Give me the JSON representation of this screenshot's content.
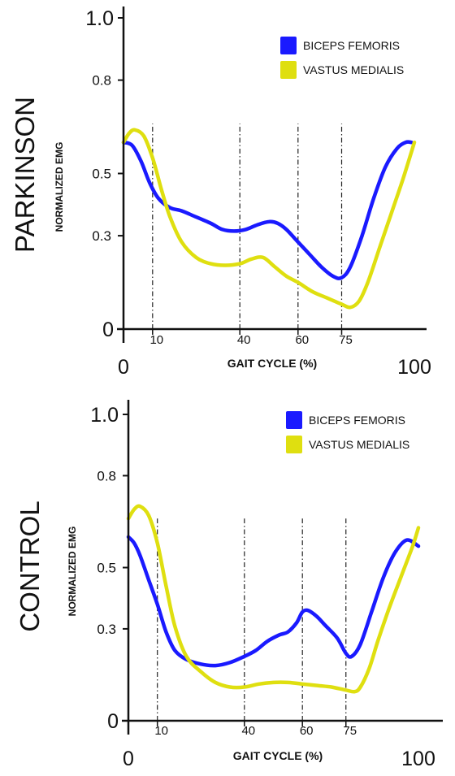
{
  "chart_data": [
    {
      "type": "line",
      "title": "PARKINSON",
      "xlabel": "GAIT CYCLE (%)",
      "ylabel": "NORMALIZED EMG",
      "xlim": [
        0,
        100
      ],
      "ylim": [
        0,
        1.0
      ],
      "y_ticks": [
        "0",
        "0.3",
        "0.5",
        "0.8",
        "1.0"
      ],
      "x_ticks_major": [
        "0",
        "100"
      ],
      "x_ticks_minor": [
        "10",
        "40",
        "60",
        "75"
      ],
      "phase_lines": [
        10,
        40,
        60,
        75
      ],
      "legend_position": "top-right",
      "series": [
        {
          "name": "BICEPS FEMORIS",
          "color": "#1a1aff",
          "x": [
            0,
            3,
            6,
            9,
            12,
            16,
            20,
            25,
            30,
            34,
            38,
            42,
            46,
            50,
            53,
            56,
            60,
            64,
            68,
            72,
            75,
            78,
            82,
            86,
            90,
            94,
            97,
            99
          ],
          "y": [
            0.6,
            0.59,
            0.54,
            0.47,
            0.42,
            0.39,
            0.38,
            0.36,
            0.34,
            0.32,
            0.315,
            0.32,
            0.335,
            0.345,
            0.34,
            0.32,
            0.28,
            0.24,
            0.2,
            0.17,
            0.165,
            0.2,
            0.3,
            0.42,
            0.52,
            0.58,
            0.6,
            0.6
          ]
        },
        {
          "name": "VASTUS MEDIALIS",
          "color": "#dfdf10",
          "x": [
            0,
            2,
            4,
            7,
            10,
            13,
            16,
            20,
            25,
            30,
            35,
            40,
            44,
            48,
            52,
            56,
            60,
            65,
            70,
            75,
            78,
            81,
            84,
            88,
            92,
            96,
            100
          ],
          "y": [
            0.6,
            0.63,
            0.64,
            0.62,
            0.55,
            0.45,
            0.36,
            0.28,
            0.23,
            0.21,
            0.205,
            0.21,
            0.225,
            0.23,
            0.2,
            0.17,
            0.15,
            0.12,
            0.1,
            0.08,
            0.07,
            0.09,
            0.15,
            0.26,
            0.37,
            0.48,
            0.6
          ]
        }
      ]
    },
    {
      "type": "line",
      "title": "CONTROL",
      "xlabel": "GAIT CYCLE (%)",
      "ylabel": "NORMALIZED EMG",
      "xlim": [
        0,
        100
      ],
      "ylim": [
        0,
        1.0
      ],
      "y_ticks": [
        "0",
        "0.3",
        "0.5",
        "0.8",
        "1.0"
      ],
      "x_ticks_major": [
        "0",
        "100"
      ],
      "x_ticks_minor": [
        "10",
        "40",
        "60",
        "75"
      ],
      "phase_lines": [
        10,
        40,
        60,
        75
      ],
      "legend_position": "top-right",
      "series": [
        {
          "name": "BICEPS FEMORIS",
          "color": "#1a1aff",
          "x": [
            0,
            2,
            4,
            7,
            10,
            13,
            16,
            20,
            25,
            30,
            35,
            40,
            44,
            48,
            52,
            55,
            58,
            60,
            62,
            65,
            68,
            72,
            75,
            77,
            80,
            84,
            88,
            92,
            96,
            100
          ],
          "y": [
            0.6,
            0.58,
            0.54,
            0.46,
            0.38,
            0.29,
            0.23,
            0.2,
            0.185,
            0.18,
            0.19,
            0.21,
            0.23,
            0.26,
            0.28,
            0.29,
            0.32,
            0.355,
            0.36,
            0.34,
            0.31,
            0.27,
            0.22,
            0.21,
            0.25,
            0.36,
            0.47,
            0.55,
            0.59,
            0.57
          ]
        },
        {
          "name": "VASTUS MEDIALIS",
          "color": "#dfdf10",
          "x": [
            0,
            2,
            4,
            7,
            10,
            13,
            16,
            20,
            25,
            30,
            35,
            40,
            45,
            50,
            55,
            60,
            65,
            70,
            75,
            78,
            80,
            83,
            86,
            90,
            94,
            98,
            100
          ],
          "y": [
            0.66,
            0.69,
            0.7,
            0.67,
            0.58,
            0.44,
            0.31,
            0.21,
            0.16,
            0.125,
            0.11,
            0.11,
            0.12,
            0.125,
            0.125,
            0.12,
            0.115,
            0.11,
            0.1,
            0.095,
            0.11,
            0.17,
            0.26,
            0.37,
            0.47,
            0.57,
            0.63
          ]
        }
      ]
    }
  ]
}
